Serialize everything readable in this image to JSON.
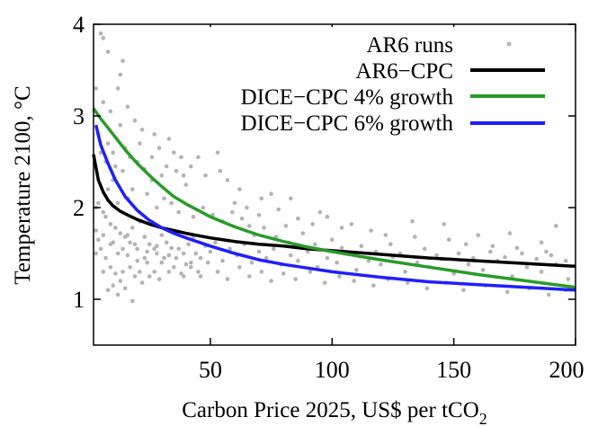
{
  "chart_data": {
    "type": "scatter",
    "title": "",
    "xlabel": "Carbon Price 2025, US$ per tCO",
    "xlabel_subscript": "2",
    "ylabel": "Temperature 2100, °C",
    "xlim": [
      2,
      200
    ],
    "ylim": [
      0.5,
      4
    ],
    "xticks": [
      50,
      100,
      150,
      200
    ],
    "yticks": [
      1,
      2,
      3,
      4
    ],
    "grid": false,
    "legend_position": "top-right",
    "colors": {
      "scatter": "#b3b3b3",
      "ar6_cpc": "#000000",
      "dice_4": "#2a9a2a",
      "dice_6": "#1f1fff"
    },
    "series": [
      {
        "name": "AR6 runs",
        "kind": "scatter",
        "points": [
          [
            5,
            3.9
          ],
          [
            6,
            3.85
          ],
          [
            8,
            3.7
          ],
          [
            14,
            3.6
          ],
          [
            13,
            3.45
          ],
          [
            12,
            3.3
          ],
          [
            3,
            3.3
          ],
          [
            6,
            3.15
          ],
          [
            9,
            3.05
          ],
          [
            16,
            3.1
          ],
          [
            19,
            2.95
          ],
          [
            22,
            2.85
          ],
          [
            27,
            2.8
          ],
          [
            33,
            2.75
          ],
          [
            38,
            2.55
          ],
          [
            45,
            2.55
          ],
          [
            53,
            2.6
          ],
          [
            36,
            2.4
          ],
          [
            30,
            2.35
          ],
          [
            57,
            2.3
          ],
          [
            62,
            2.2
          ],
          [
            71,
            2.1
          ],
          [
            75,
            2.15
          ],
          [
            83,
            2.1
          ],
          [
            95,
            1.95
          ],
          [
            98,
            1.9
          ],
          [
            108,
            1.82
          ],
          [
            133,
            1.85
          ],
          [
            146,
            1.82
          ],
          [
            192,
            1.8
          ],
          [
            66,
            1.8
          ],
          [
            81,
            1.8
          ],
          [
            160,
            1.7
          ],
          [
            173,
            1.72
          ],
          [
            186,
            1.62
          ],
          [
            4,
            2.05
          ],
          [
            6,
            1.95
          ],
          [
            7,
            1.9
          ],
          [
            9,
            1.82
          ],
          [
            11,
            1.78
          ],
          [
            13,
            1.72
          ],
          [
            15,
            1.68
          ],
          [
            17,
            1.62
          ],
          [
            18,
            1.78
          ],
          [
            20,
            1.55
          ],
          [
            21,
            1.85
          ],
          [
            23,
            1.68
          ],
          [
            25,
            1.6
          ],
          [
            26,
            1.82
          ],
          [
            28,
            1.5
          ],
          [
            30,
            1.7
          ],
          [
            32,
            1.62
          ],
          [
            34,
            1.56
          ],
          [
            36,
            1.72
          ],
          [
            39,
            1.5
          ],
          [
            41,
            1.6
          ],
          [
            43,
            1.68
          ],
          [
            46,
            1.45
          ],
          [
            48,
            1.58
          ],
          [
            50,
            1.52
          ],
          [
            52,
            1.62
          ],
          [
            55,
            1.42
          ],
          [
            58,
            1.55
          ],
          [
            61,
            1.48
          ],
          [
            64,
            1.6
          ],
          [
            67,
            1.4
          ],
          [
            70,
            1.52
          ],
          [
            73,
            1.45
          ],
          [
            76,
            1.55
          ],
          [
            79,
            1.38
          ],
          [
            83,
            1.48
          ],
          [
            86,
            1.42
          ],
          [
            90,
            1.52
          ],
          [
            94,
            1.35
          ],
          [
            98,
            1.45
          ],
          [
            102,
            1.4
          ],
          [
            106,
            1.5
          ],
          [
            110,
            1.32
          ],
          [
            115,
            1.42
          ],
          [
            120,
            1.38
          ],
          [
            125,
            1.46
          ],
          [
            130,
            1.3
          ],
          [
            135,
            1.4
          ],
          [
            140,
            1.35
          ],
          [
            145,
            1.44
          ],
          [
            150,
            1.28
          ],
          [
            156,
            1.38
          ],
          [
            162,
            1.32
          ],
          [
            168,
            1.42
          ],
          [
            174,
            1.25
          ],
          [
            180,
            1.35
          ],
          [
            186,
            1.3
          ],
          [
            192,
            1.38
          ],
          [
            197,
            1.22
          ],
          [
            5,
            1.55
          ],
          [
            7,
            1.45
          ],
          [
            9,
            1.35
          ],
          [
            11,
            1.28
          ],
          [
            13,
            1.2
          ],
          [
            15,
            1.12
          ],
          [
            17,
            1.35
          ],
          [
            19,
            1.25
          ],
          [
            22,
            1.18
          ],
          [
            24,
            1.4
          ],
          [
            27,
            1.3
          ],
          [
            29,
            1.22
          ],
          [
            31,
            1.45
          ],
          [
            35,
            1.35
          ],
          [
            38,
            1.28
          ],
          [
            42,
            1.4
          ],
          [
            45,
            1.3
          ],
          [
            12,
            1.05
          ],
          [
            8,
            1.1
          ],
          [
            18,
            0.98
          ],
          [
            4,
            1.65
          ],
          [
            10,
            1.62
          ],
          [
            14,
            1.55
          ],
          [
            16,
            1.48
          ],
          [
            20,
            1.42
          ],
          [
            24,
            1.52
          ],
          [
            28,
            1.58
          ],
          [
            33,
            1.48
          ],
          [
            37,
            1.55
          ],
          [
            40,
            1.38
          ],
          [
            44,
            1.5
          ],
          [
            8,
            2.2
          ],
          [
            10,
            2.3
          ],
          [
            12,
            2.05
          ],
          [
            14,
            2.4
          ],
          [
            16,
            2.1
          ],
          [
            18,
            2.2
          ],
          [
            20,
            2.5
          ],
          [
            24,
            2.15
          ],
          [
            26,
            2.3
          ],
          [
            28,
            2.0
          ],
          [
            31,
            2.1
          ],
          [
            34,
            2.05
          ],
          [
            37,
            1.95
          ],
          [
            40,
            2.25
          ],
          [
            43,
            1.9
          ],
          [
            47,
            2.0
          ],
          [
            51,
            1.92
          ],
          [
            55,
            1.85
          ],
          [
            59,
            1.95
          ],
          [
            63,
            1.88
          ],
          [
            68,
            1.7
          ],
          [
            72,
            1.78
          ],
          [
            77,
            1.68
          ],
          [
            82,
            1.62
          ],
          [
            88,
            1.72
          ],
          [
            93,
            1.6
          ],
          [
            100,
            1.65
          ],
          [
            104,
            1.56
          ],
          [
            112,
            1.58
          ],
          [
            118,
            1.52
          ],
          [
            124,
            1.6
          ],
          [
            128,
            1.5
          ],
          [
            138,
            1.55
          ],
          [
            143,
            1.48
          ],
          [
            152,
            1.5
          ],
          [
            158,
            1.45
          ],
          [
            165,
            1.52
          ],
          [
            171,
            1.46
          ],
          [
            178,
            1.5
          ],
          [
            184,
            1.44
          ],
          [
            190,
            1.48
          ],
          [
            196,
            1.42
          ],
          [
            4,
            2.8
          ],
          [
            5,
            2.6
          ],
          [
            7,
            2.5
          ],
          [
            8,
            2.7
          ],
          [
            10,
            2.6
          ],
          [
            11,
            2.45
          ],
          [
            13,
            2.9
          ],
          [
            15,
            2.65
          ],
          [
            17,
            2.55
          ],
          [
            21,
            2.7
          ],
          [
            23,
            2.42
          ],
          [
            26,
            2.55
          ],
          [
            29,
            2.65
          ],
          [
            32,
            2.45
          ],
          [
            35,
            2.6
          ],
          [
            39,
            2.35
          ],
          [
            42,
            2.45
          ],
          [
            48,
            2.35
          ],
          [
            54,
            2.4
          ],
          [
            60,
            2.05
          ],
          [
            65,
            2.0
          ],
          [
            70,
            1.92
          ],
          [
            78,
            1.98
          ],
          [
            86,
            1.88
          ],
          [
            92,
            1.82
          ],
          [
            104,
            1.78
          ],
          [
            116,
            1.75
          ],
          [
            122,
            1.7
          ],
          [
            134,
            1.68
          ],
          [
            148,
            1.65
          ],
          [
            155,
            1.6
          ],
          [
            166,
            1.58
          ],
          [
            176,
            1.56
          ],
          [
            188,
            1.52
          ],
          [
            3,
            1.5
          ],
          [
            3,
            1.75
          ],
          [
            3,
            2.0
          ],
          [
            6,
            1.7
          ],
          [
            6,
            1.3
          ],
          [
            9,
            1.6
          ],
          [
            10,
            1.15
          ],
          [
            12,
            1.5
          ],
          [
            14,
            1.3
          ],
          [
            16,
            1.7
          ],
          [
            19,
            1.6
          ],
          [
            21,
            1.3
          ],
          [
            23,
            1.45
          ],
          [
            25,
            1.25
          ],
          [
            27,
            1.55
          ],
          [
            30,
            1.4
          ],
          [
            33,
            1.3
          ],
          [
            36,
            1.45
          ],
          [
            39,
            1.25
          ],
          [
            42,
            1.35
          ],
          [
            46,
            1.25
          ],
          [
            49,
            1.4
          ],
          [
            53,
            1.3
          ],
          [
            57,
            1.22
          ],
          [
            62,
            1.35
          ],
          [
            66,
            1.25
          ],
          [
            71,
            1.3
          ],
          [
            75,
            1.2
          ],
          [
            80,
            1.28
          ],
          [
            85,
            1.22
          ],
          [
            91,
            1.3
          ],
          [
            97,
            1.18
          ],
          [
            103,
            1.25
          ],
          [
            109,
            1.2
          ],
          [
            117,
            1.15
          ],
          [
            123,
            1.22
          ],
          [
            131,
            1.18
          ],
          [
            139,
            1.12
          ],
          [
            147,
            1.18
          ],
          [
            154,
            1.1
          ],
          [
            163,
            1.15
          ],
          [
            172,
            1.08
          ],
          [
            181,
            1.12
          ],
          [
            189,
            1.05
          ],
          [
            196,
            1.1
          ]
        ]
      },
      {
        "name": "AR6−CPC",
        "kind": "line",
        "x": [
          2,
          4,
          6,
          8,
          10,
          13,
          16,
          20,
          25,
          30,
          35,
          40,
          50,
          60,
          70,
          80,
          90,
          100,
          120,
          140,
          160,
          180,
          200
        ],
        "values": [
          2.58,
          2.3,
          2.17,
          2.08,
          2.02,
          1.96,
          1.92,
          1.87,
          1.82,
          1.78,
          1.75,
          1.72,
          1.67,
          1.63,
          1.6,
          1.58,
          1.55,
          1.53,
          1.49,
          1.45,
          1.42,
          1.39,
          1.36
        ]
      },
      {
        "name": "DICE−CPC 4% growth",
        "kind": "line",
        "x": [
          2,
          5,
          10,
          15,
          20,
          25,
          30,
          35,
          40,
          50,
          60,
          70,
          80,
          90,
          100,
          120,
          140,
          160,
          180,
          200
        ],
        "values": [
          3.08,
          2.97,
          2.8,
          2.63,
          2.48,
          2.35,
          2.23,
          2.12,
          2.04,
          1.9,
          1.79,
          1.7,
          1.63,
          1.57,
          1.52,
          1.43,
          1.35,
          1.27,
          1.2,
          1.13
        ]
      },
      {
        "name": "DICE−CPC 6% growth",
        "kind": "line",
        "x": [
          3,
          5,
          8,
          11,
          15,
          20,
          25,
          30,
          35,
          40,
          50,
          60,
          70,
          80,
          90,
          100,
          120,
          140,
          160,
          180,
          200
        ],
        "values": [
          2.9,
          2.68,
          2.48,
          2.3,
          2.12,
          1.97,
          1.86,
          1.78,
          1.72,
          1.67,
          1.58,
          1.5,
          1.43,
          1.38,
          1.34,
          1.3,
          1.24,
          1.19,
          1.16,
          1.13,
          1.1
        ]
      }
    ]
  }
}
